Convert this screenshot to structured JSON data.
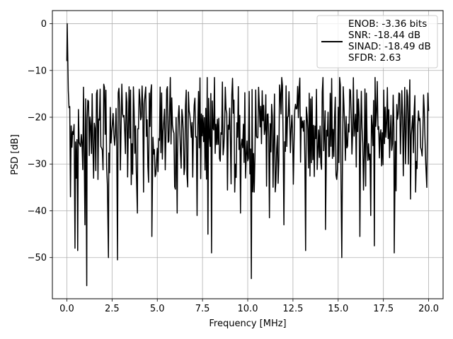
{
  "chart_data": {
    "type": "line",
    "title": "",
    "xlabel": "Frequency [MHz]",
    "ylabel": "PSD [dB]",
    "xlim": [
      -0.8,
      20.8
    ],
    "ylim": [
      -58.8,
      2.8
    ],
    "x_ticks": [
      0.0,
      2.5,
      5.0,
      7.5,
      10.0,
      12.5,
      15.0,
      17.5,
      20.0
    ],
    "x_tick_labels": [
      "0.0",
      "2.5",
      "5.0",
      "7.5",
      "10.0",
      "12.5",
      "15.0",
      "17.5",
      "20.0"
    ],
    "y_ticks": [
      0,
      -10,
      -20,
      -30,
      -40,
      -50
    ],
    "y_tick_labels": [
      "0",
      "−10",
      "−20",
      "−30",
      "−40",
      "−50"
    ],
    "grid": true,
    "legend_position": "top-right",
    "series": [
      {
        "color": "#000000",
        "legend_lines": [
          "ENOB: -3.36 bits",
          "SNR: -18.44 dB",
          "SINAD: -18.49 dB",
          "SFDR: 2.63"
        ],
        "x_range": [
          0,
          20
        ],
        "peak": {
          "x": 0.02,
          "y": 0
        },
        "noise_floor_mean": -23,
        "noise_band": [
          -33,
          -13
        ],
        "dips": [
          {
            "x": 0.2,
            "y": -37
          },
          {
            "x": 0.45,
            "y": -48
          },
          {
            "x": 0.6,
            "y": -48.5
          },
          {
            "x": 1.0,
            "y": -43
          },
          {
            "x": 1.1,
            "y": -56
          },
          {
            "x": 2.3,
            "y": -50
          },
          {
            "x": 2.8,
            "y": -50.5
          },
          {
            "x": 3.9,
            "y": -40.5
          },
          {
            "x": 4.7,
            "y": -45.5
          },
          {
            "x": 6.1,
            "y": -40.5
          },
          {
            "x": 7.2,
            "y": -41
          },
          {
            "x": 7.8,
            "y": -45
          },
          {
            "x": 8.0,
            "y": -41
          },
          {
            "x": 8.0,
            "y": -49
          },
          {
            "x": 9.6,
            "y": -40.5
          },
          {
            "x": 10.2,
            "y": -54.5
          },
          {
            "x": 11.2,
            "y": -41.5
          },
          {
            "x": 12.0,
            "y": -43
          },
          {
            "x": 13.2,
            "y": -48.5
          },
          {
            "x": 14.3,
            "y": -44
          },
          {
            "x": 15.2,
            "y": -50
          },
          {
            "x": 16.2,
            "y": -45.5
          },
          {
            "x": 16.8,
            "y": -41
          },
          {
            "x": 17.0,
            "y": -47.5
          },
          {
            "x": 18.1,
            "y": -49
          },
          {
            "x": 19.0,
            "y": -37.5
          },
          {
            "x": 19.9,
            "y": -35
          }
        ],
        "sample_count": 500
      }
    ]
  }
}
